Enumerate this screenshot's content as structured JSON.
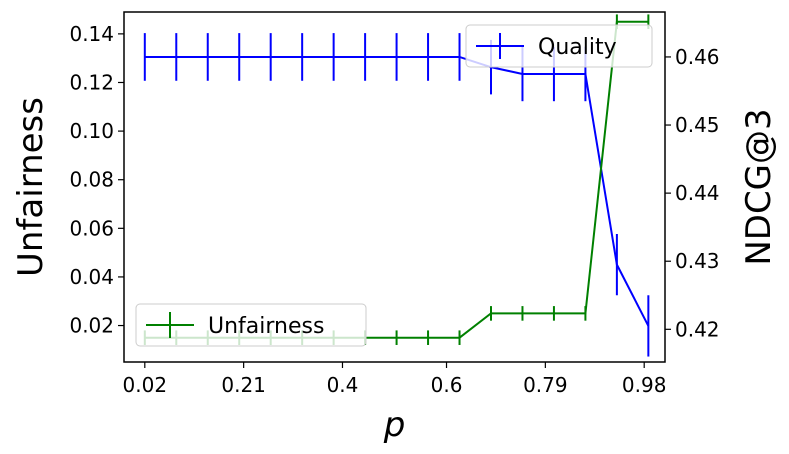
{
  "chart_data": {
    "type": "line",
    "xlabel": "p",
    "ylabel_left": "Unfairness",
    "ylabel_right": "NDCG@3",
    "x": [
      0.02,
      0.0805,
      0.141,
      0.2015,
      0.262,
      0.3225,
      0.383,
      0.4435,
      0.504,
      0.5645,
      0.625,
      0.6855,
      0.746,
      0.8065,
      0.867,
      0.9275,
      0.988
    ],
    "xticks": [
      0.02,
      0.21,
      0.4,
      0.6,
      0.79,
      0.98
    ],
    "xtick_labels": [
      "0.02",
      "0.21",
      "0.4",
      "0.6",
      "0.79",
      "0.98"
    ],
    "xlim": [
      -0.02,
      1.02
    ],
    "left_axis": {
      "ylim": [
        0.005,
        0.149
      ],
      "ticks": [
        0.02,
        0.04,
        0.06,
        0.08,
        0.1,
        0.12,
        0.14
      ],
      "tick_labels": [
        "0.02",
        "0.04",
        "0.06",
        "0.08",
        "0.10",
        "0.12",
        "0.14"
      ]
    },
    "right_axis": {
      "ylim": [
        0.4152,
        0.4666
      ],
      "ticks": [
        0.42,
        0.43,
        0.44,
        0.45,
        0.46
      ],
      "tick_labels": [
        "0.42",
        "0.43",
        "0.44",
        "0.45",
        "0.46"
      ]
    },
    "series": [
      {
        "name": "Quality",
        "axis": "right",
        "color": "#0000ff",
        "values": [
          0.46,
          0.46,
          0.46,
          0.46,
          0.46,
          0.46,
          0.46,
          0.46,
          0.46,
          0.46,
          0.46,
          0.4585,
          0.4575,
          0.4575,
          0.4575,
          0.4295,
          0.4205
        ],
        "errors": [
          0.0035,
          0.0035,
          0.0035,
          0.0035,
          0.0035,
          0.0035,
          0.0035,
          0.0035,
          0.0035,
          0.0035,
          0.0035,
          0.004,
          0.004,
          0.004,
          0.004,
          0.0045,
          0.0045
        ]
      },
      {
        "name": "Unfairness",
        "axis": "left",
        "color": "#008000",
        "values": [
          0.015,
          0.015,
          0.015,
          0.015,
          0.015,
          0.015,
          0.015,
          0.015,
          0.015,
          0.015,
          0.015,
          0.025,
          0.025,
          0.025,
          0.025,
          0.145,
          0.145
        ],
        "errors": [
          0.003,
          0.003,
          0.003,
          0.003,
          0.003,
          0.003,
          0.003,
          0.003,
          0.003,
          0.003,
          0.003,
          0.003,
          0.003,
          0.003,
          0.003,
          0.003,
          0.003
        ]
      }
    ],
    "legends": [
      {
        "label": "Quality",
        "position": "upper-right"
      },
      {
        "label": "Unfairness",
        "position": "lower-left"
      }
    ],
    "grid": false
  }
}
